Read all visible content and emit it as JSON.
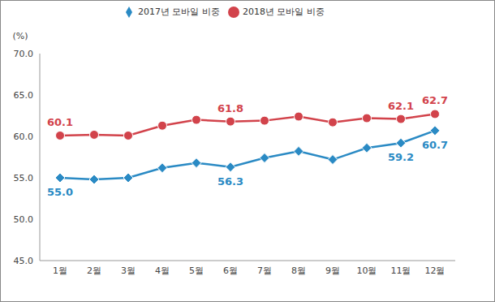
{
  "chart_data": {
    "type": "line",
    "y_label": "(%)",
    "categories": [
      "1월",
      "2월",
      "3월",
      "4월",
      "5월",
      "6월",
      "7월",
      "8월",
      "9월",
      "10월",
      "11월",
      "12월"
    ],
    "series": [
      {
        "name": "2017년 모바일 비중",
        "color": "#2a8ac4",
        "marker": "diamond",
        "values": [
          55.0,
          54.8,
          55.0,
          56.2,
          56.8,
          56.3,
          57.4,
          58.2,
          57.2,
          58.6,
          59.2,
          60.7
        ],
        "value_labels": [
          "55.0",
          null,
          null,
          null,
          null,
          "56.3",
          null,
          null,
          null,
          null,
          "59.2",
          "60.7"
        ]
      },
      {
        "name": "2018년 모바일 비중",
        "color": "#d2434b",
        "marker": "circle",
        "values": [
          60.1,
          60.2,
          60.1,
          61.3,
          62.0,
          61.8,
          61.9,
          62.4,
          61.7,
          62.2,
          62.1,
          62.7
        ],
        "value_labels": [
          "60.1",
          null,
          null,
          null,
          null,
          "61.8",
          null,
          null,
          null,
          null,
          "62.1",
          "62.7"
        ]
      }
    ],
    "ylim": [
      45,
      70
    ],
    "yticks": [
      {
        "value": 45,
        "label": "45.0"
      },
      {
        "value": 50,
        "label": "50.0"
      },
      {
        "value": 55,
        "label": "55.0"
      },
      {
        "value": 60,
        "label": "60.0"
      },
      {
        "value": 65,
        "label": "65.0"
      },
      {
        "value": 70,
        "label": "70.0"
      }
    ],
    "grid": false,
    "data_labels": true,
    "legend": "top"
  }
}
